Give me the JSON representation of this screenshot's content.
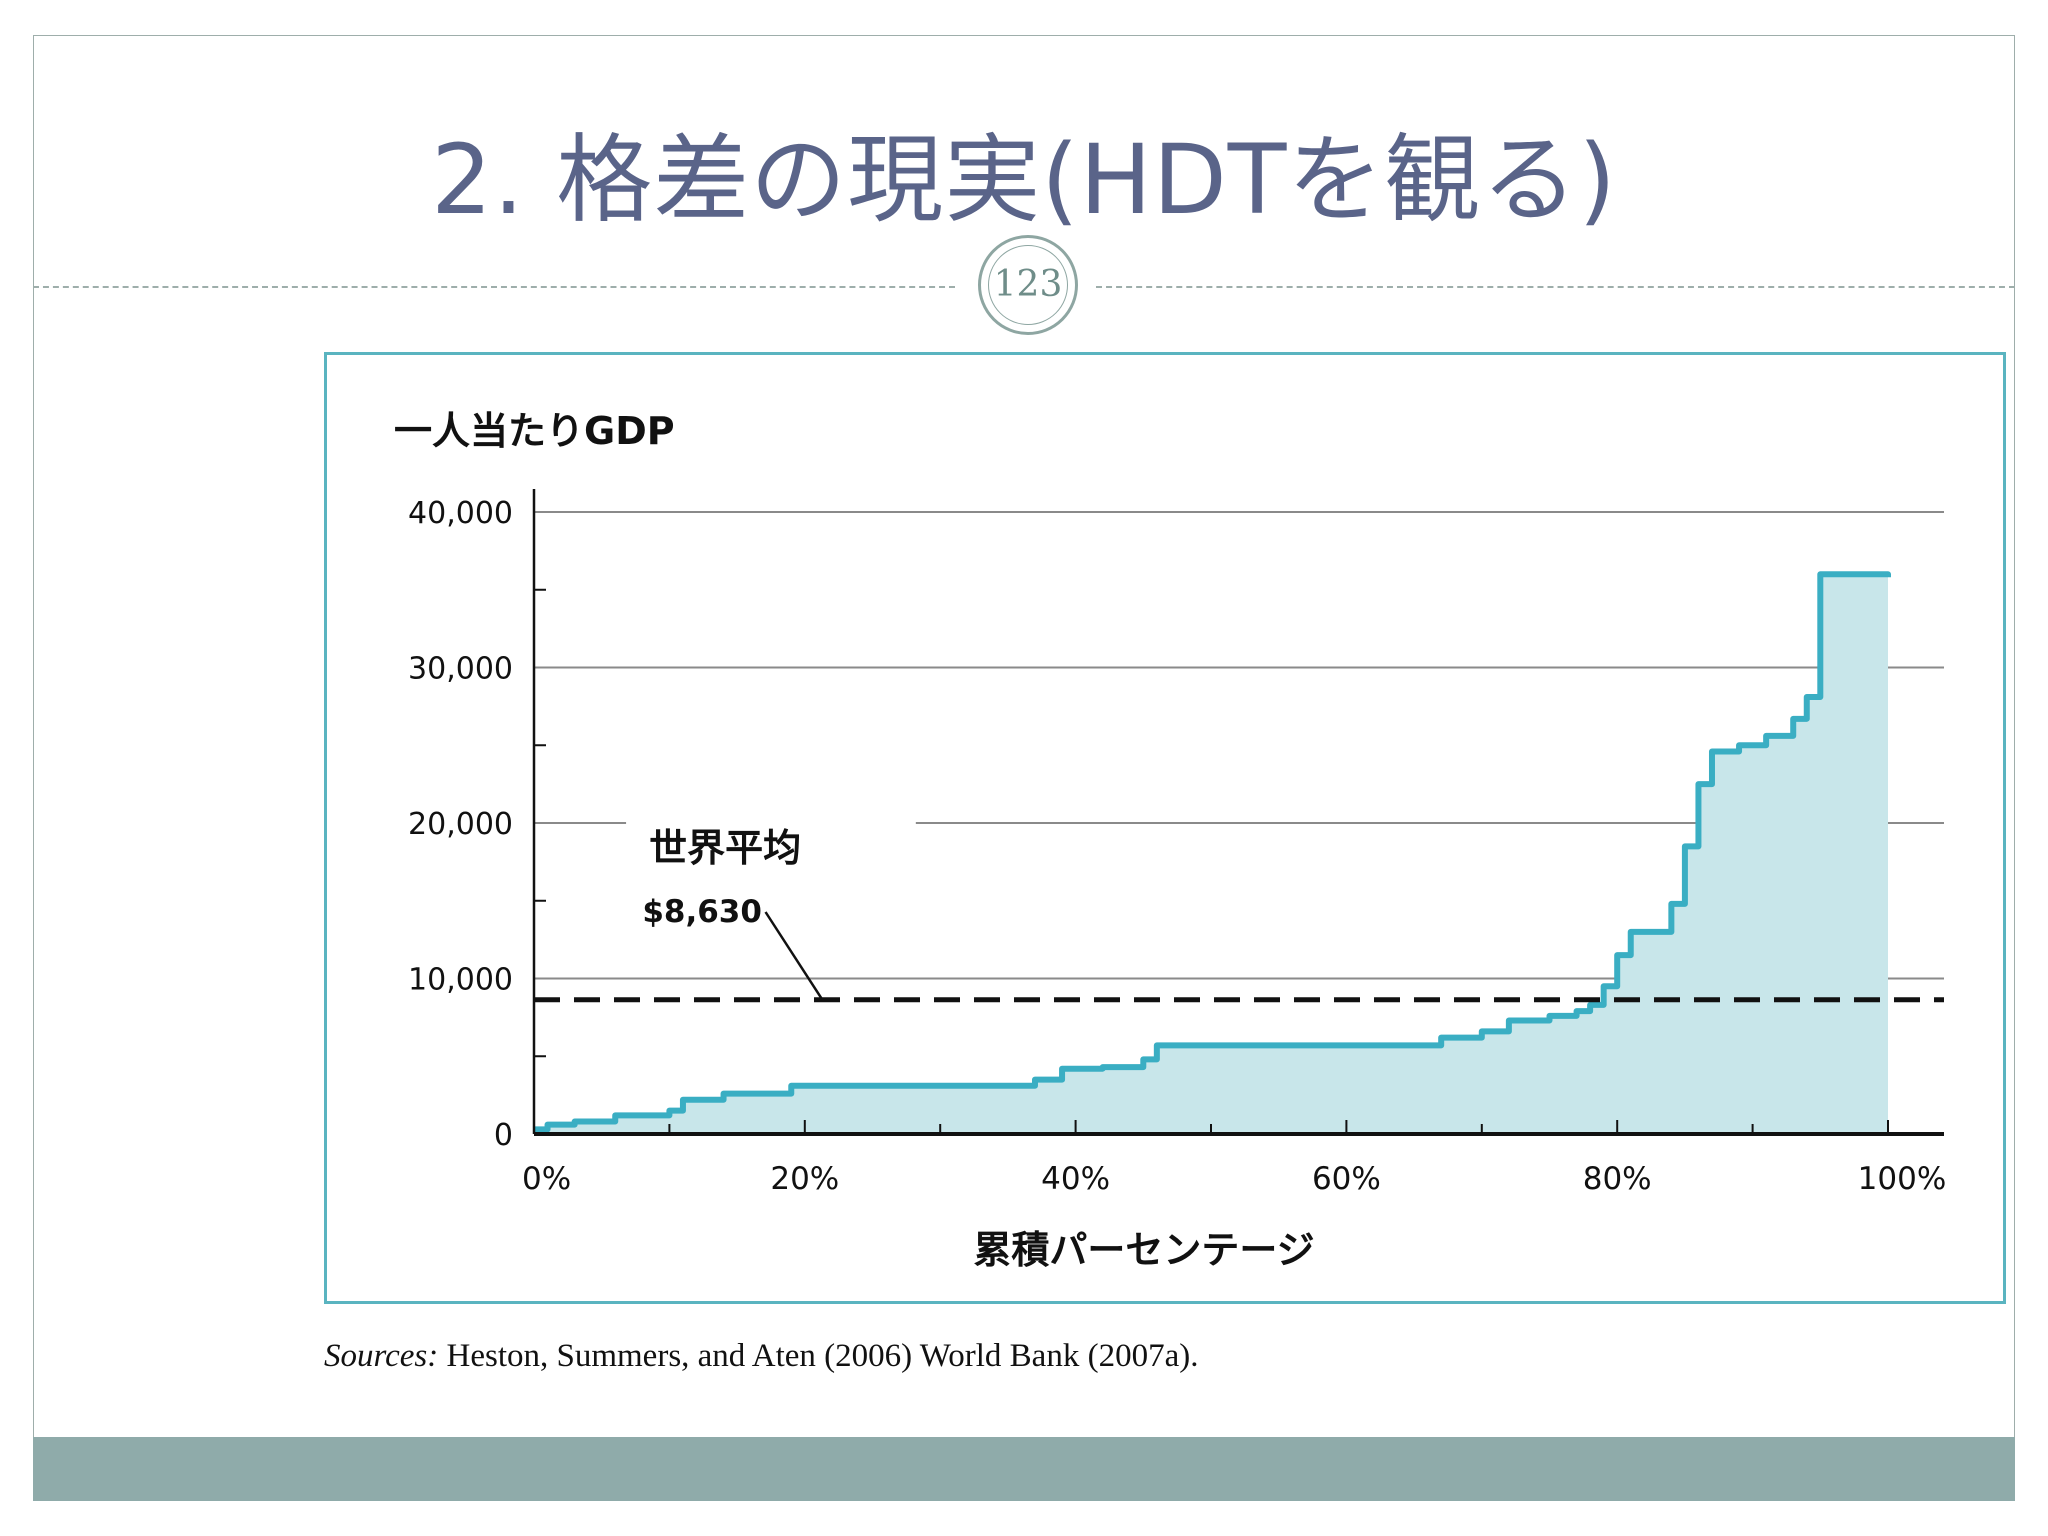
{
  "slide": {
    "title": "2. 格差の現実(HDTを観る)",
    "page_number": "123",
    "source_label": "Sources:",
    "source_text": "Heston, Summers, and Aten (2006) World Bank (2007a)."
  },
  "colors": {
    "title": "#5a6489",
    "frame": "#9eaeab",
    "chart_border": "#5ab4c0",
    "series_line": "#3aaec3",
    "series_fill": "#c8e6ea",
    "footer_bar": "#8fabaa"
  },
  "chart_data": {
    "type": "area",
    "title": "",
    "ylabel": "一人当たりGDP",
    "xlabel": "累積パーセンテージ",
    "xlim": [
      0,
      100
    ],
    "ylim": [
      0,
      40000
    ],
    "x_ticks": [
      0,
      20,
      40,
      60,
      80,
      100
    ],
    "x_tick_labels": [
      "0%",
      "20%",
      "40%",
      "60%",
      "80%",
      "100%"
    ],
    "y_ticks": [
      0,
      10000,
      20000,
      30000,
      40000
    ],
    "y_tick_labels": [
      "0",
      "10,000",
      "20,000",
      "30,000",
      "40,000"
    ],
    "grid": true,
    "step": true,
    "series": [
      {
        "x": [
          0,
          1,
          3,
          6,
          10,
          11,
          14,
          19,
          25,
          30,
          37,
          39,
          42,
          45,
          46,
          50,
          55,
          60,
          64,
          67,
          70,
          72,
          75,
          77,
          78,
          79,
          80,
          81,
          84,
          85,
          86,
          87,
          89,
          91,
          93,
          94,
          95,
          100
        ],
        "y": [
          300,
          600,
          800,
          1200,
          1500,
          2200,
          2600,
          3100,
          3100,
          3100,
          3500,
          4200,
          4300,
          4800,
          5700,
          5700,
          5700,
          5700,
          5700,
          6200,
          6600,
          7300,
          7600,
          7900,
          8300,
          9500,
          11500,
          13000,
          14800,
          18500,
          22500,
          24600,
          25000,
          25600,
          26700,
          28100,
          36000,
          35800
        ]
      }
    ],
    "reference_line": {
      "y": 8630,
      "label": "世界平均",
      "value_label": "$8,630"
    }
  }
}
